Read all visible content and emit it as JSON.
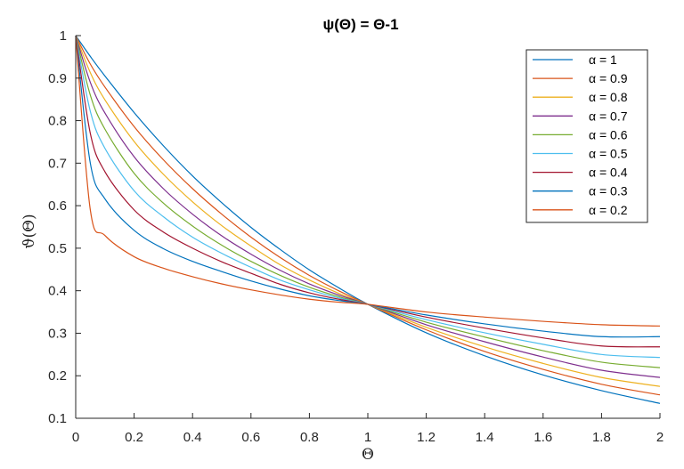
{
  "chart_data": {
    "type": "line",
    "title": "ψ(Θ) = Θ-1",
    "xlabel": "Θ",
    "ylabel": "ϑ(Θ)",
    "xlim": [
      0,
      2
    ],
    "ylim": [
      0.1,
      1
    ],
    "xticks": [
      "0",
      "0.2",
      "0.4",
      "0.6",
      "0.8",
      "1",
      "1.2",
      "1.4",
      "1.6",
      "1.8",
      "2"
    ],
    "yticks": [
      "0.1",
      "0.2",
      "0.3",
      "0.4",
      "0.5",
      "0.6",
      "0.7",
      "0.8",
      "0.9",
      "1"
    ],
    "grid": false,
    "legend_position": "top-right",
    "x": [
      0,
      0.05,
      0.1,
      0.2,
      0.3,
      0.4,
      0.5,
      0.6,
      0.7,
      0.8,
      0.9,
      1,
      1.2,
      1.4,
      1.6,
      1.8,
      2
    ],
    "series": [
      {
        "name": "α = 1",
        "color": "#0072bd",
        "values": [
          1.0,
          0.951,
          0.905,
          0.819,
          0.741,
          0.67,
          0.607,
          0.549,
          0.497,
          0.449,
          0.407,
          0.368,
          0.301,
          0.247,
          0.202,
          0.165,
          0.135
        ]
      },
      {
        "name": "α = 0.9",
        "color": "#d95319",
        "values": [
          1.0,
          0.933,
          0.879,
          0.786,
          0.708,
          0.64,
          0.58,
          0.526,
          0.478,
          0.436,
          0.4,
          0.368,
          0.308,
          0.257,
          0.215,
          0.18,
          0.155
        ]
      },
      {
        "name": "α = 0.8",
        "color": "#edb120",
        "values": [
          1.0,
          0.913,
          0.849,
          0.751,
          0.674,
          0.609,
          0.553,
          0.505,
          0.461,
          0.425,
          0.394,
          0.368,
          0.314,
          0.268,
          0.229,
          0.196,
          0.175
        ]
      },
      {
        "name": "α = 0.7",
        "color": "#7e2f8e",
        "values": [
          1.0,
          0.89,
          0.818,
          0.715,
          0.64,
          0.58,
          0.529,
          0.486,
          0.448,
          0.416,
          0.39,
          0.368,
          0.32,
          0.28,
          0.244,
          0.213,
          0.196
        ]
      },
      {
        "name": "α = 0.6",
        "color": "#77ac30",
        "values": [
          1.0,
          0.86,
          0.78,
          0.676,
          0.606,
          0.552,
          0.507,
          0.469,
          0.436,
          0.408,
          0.386,
          0.368,
          0.326,
          0.291,
          0.259,
          0.232,
          0.219
        ]
      },
      {
        "name": "α = 0.5",
        "color": "#4dbeee",
        "values": [
          1.0,
          0.822,
          0.735,
          0.635,
          0.574,
          0.526,
          0.488,
          0.455,
          0.425,
          0.402,
          0.383,
          0.368,
          0.332,
          0.301,
          0.274,
          0.25,
          0.243
        ]
      },
      {
        "name": "α = 0.4",
        "color": "#a2142f",
        "values": [
          1.0,
          0.77,
          0.68,
          0.59,
          0.538,
          0.5,
          0.468,
          0.441,
          0.415,
          0.395,
          0.38,
          0.368,
          0.338,
          0.312,
          0.289,
          0.27,
          0.268
        ]
      },
      {
        "name": "α = 0.3",
        "color": "#0072bd",
        "values": [
          1.0,
          0.7,
          0.616,
          0.542,
          0.499,
          0.469,
          0.445,
          0.423,
          0.404,
          0.388,
          0.377,
          0.368,
          0.343,
          0.322,
          0.305,
          0.292,
          0.292
        ]
      },
      {
        "name": "α = 0.2",
        "color": "#d95319",
        "values": [
          1.0,
          0.59,
          0.53,
          0.48,
          0.453,
          0.433,
          0.416,
          0.402,
          0.39,
          0.38,
          0.373,
          0.368,
          0.35,
          0.338,
          0.328,
          0.32,
          0.317
        ]
      }
    ]
  }
}
